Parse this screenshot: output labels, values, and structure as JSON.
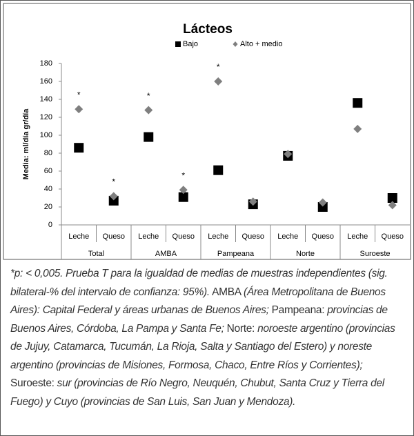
{
  "chart_data": {
    "type": "scatter",
    "title": "Lácteos",
    "y_label": "Media: ml/día gr/día",
    "categories": [
      "Leche",
      "Queso",
      "Leche",
      "Queso",
      "Leche",
      "Queso",
      "Leche",
      "Queso",
      "Leche",
      "Queso"
    ],
    "groups": [
      "Total",
      "AMBA",
      "Pampeana",
      "Norte",
      "Suroeste"
    ],
    "series": [
      {
        "name": "Bajo",
        "color": "#000000",
        "marker": "square",
        "values": [
          86,
          27,
          98,
          31,
          61,
          23,
          77,
          20,
          136,
          30
        ]
      },
      {
        "name": "Alto + medio",
        "color": "#7f7f7f",
        "marker": "diamond",
        "values": [
          129,
          32,
          128,
          39,
          160,
          26,
          79,
          25,
          107,
          22
        ],
        "notes": [
          "*",
          "*",
          "*",
          "*",
          "*",
          null,
          null,
          null,
          null,
          null
        ]
      }
    ],
    "ylim": [
      0,
      180
    ],
    "yticks": [
      0,
      20,
      40,
      60,
      80,
      100,
      120,
      140,
      160,
      180
    ]
  },
  "caption": [
    {
      "text": "*p: < 0,005. Prueba T para la igualdad de medias de muestras independientes (sig. bilateral-% del intervalo de confianza: 95%).",
      "italic": true
    },
    {
      "text": " AMBA ",
      "italic": false
    },
    {
      "text": "(Área Metropolitana de Buenos Aires): Capital Federal y áreas urbanas de Buenos Aires;",
      "italic": true
    },
    {
      "text": " Pampeana: ",
      "italic": false
    },
    {
      "text": "provincias de Buenos Aires, Córdoba, La Pampa y Santa Fe;",
      "italic": true
    },
    {
      "text": " Norte: ",
      "italic": false
    },
    {
      "text": "noroeste argentino (provincias de Jujuy, Catamarca, Tucumán, La Rioja, Salta y Santiago del Estero) y noreste argentino (provincias de Misiones, Formosa, Chaco, Entre Ríos y Corrientes);",
      "italic": true
    },
    {
      "text": " Suroeste: ",
      "italic": false
    },
    {
      "text": "sur (provincias de Río Negro, Neuquén, Chubut, Santa Cruz y Tierra del Fuego) y Cuyo (provincias de San Luis, San Juan y Mendoza).",
      "italic": true
    }
  ]
}
